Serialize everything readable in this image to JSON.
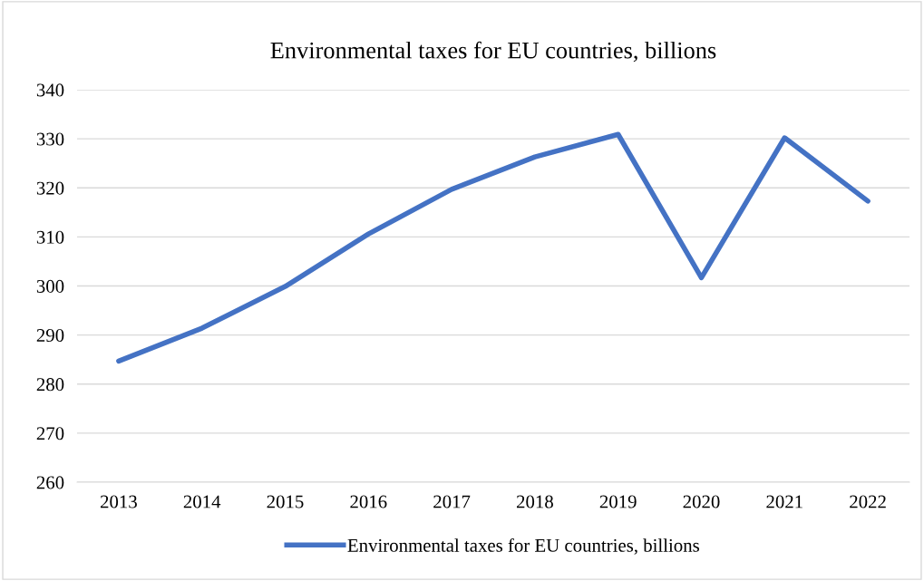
{
  "chart_data": {
    "type": "line",
    "title": "Environmental taxes for EU countries, billions",
    "categories": [
      "2013",
      "2014",
      "2015",
      "2016",
      "2017",
      "2018",
      "2019",
      "2020",
      "2021",
      "2022"
    ],
    "series": [
      {
        "name": "Environmental taxes for EU countries, billions",
        "color": "#4472c4",
        "values": [
          284.7,
          291.4,
          299.9,
          310.6,
          319.7,
          326.3,
          330.9,
          301.7,
          330.2,
          317.3
        ]
      }
    ],
    "ylim": [
      260,
      340
    ],
    "yticks": [
      260,
      270,
      280,
      290,
      300,
      310,
      320,
      330,
      340
    ],
    "grid": "y",
    "legend": "bottom",
    "marker": "none",
    "line_style": "solid"
  }
}
